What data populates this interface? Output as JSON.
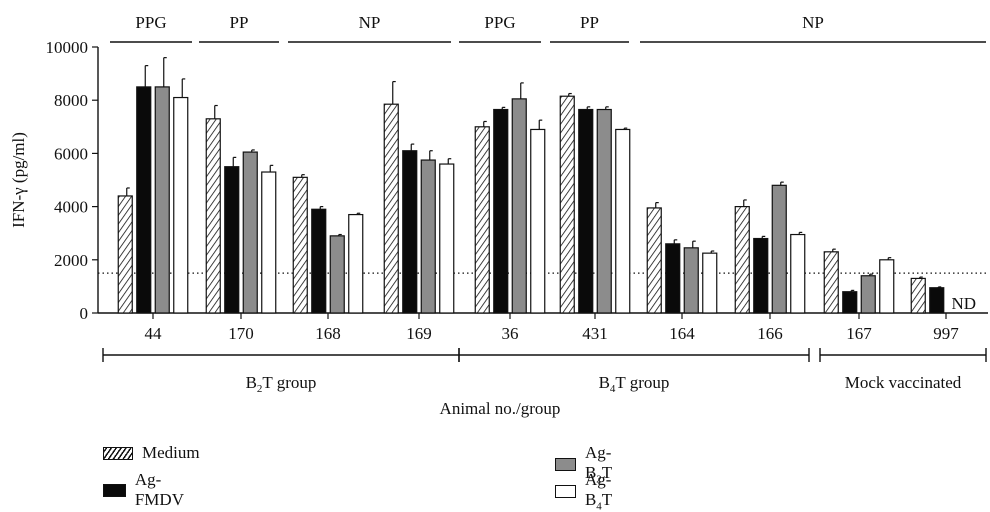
{
  "chart_data": {
    "type": "bar",
    "ylabel": "IFN-γ (pg/ml)",
    "xlabel": "Animal no./group",
    "ylim": [
      0,
      10000
    ],
    "yticks": [
      0,
      2000,
      4000,
      6000,
      8000,
      10000
    ],
    "threshold": 1500,
    "categories": [
      "44",
      "170",
      "168",
      "169",
      "36",
      "431",
      "164",
      "166",
      "167",
      "997"
    ],
    "series": [
      {
        "name": "Medium",
        "key": "medium",
        "values": [
          4400,
          7300,
          5100,
          7850,
          7000,
          8150,
          3950,
          4000,
          2300,
          1300
        ],
        "errors": [
          300,
          500,
          100,
          850,
          200,
          100,
          200,
          250,
          100,
          50
        ]
      },
      {
        "name": "Ag-FMDV",
        "key": "fmdv",
        "values": [
          8500,
          5500,
          3900,
          6100,
          7650,
          7650,
          2600,
          2800,
          800,
          950
        ],
        "errors": [
          800,
          350,
          100,
          250,
          80,
          100,
          150,
          80,
          50,
          30
        ]
      },
      {
        "name": "Ag-B2T",
        "key": "b2t",
        "values": [
          8500,
          6050,
          2900,
          5750,
          8050,
          7650,
          2450,
          4800,
          1400,
          null
        ],
        "errors": [
          1100,
          80,
          50,
          350,
          600,
          100,
          250,
          120,
          60,
          0
        ]
      },
      {
        "name": "Ag-B4T",
        "key": "b4t",
        "values": [
          8100,
          5300,
          3700,
          5600,
          6900,
          6900,
          2250,
          2950,
          2000,
          null
        ],
        "errors": [
          700,
          250,
          50,
          200,
          350,
          50,
          80,
          80,
          80,
          0
        ]
      }
    ],
    "nd_label": "ND",
    "top_labels": [
      {
        "text": "PPG",
        "from": 0,
        "to": 0
      },
      {
        "text": "PP",
        "from": 1,
        "to": 1
      },
      {
        "text": "NP",
        "from": 2,
        "to": 3
      },
      {
        "text": "PPG",
        "from": 4,
        "to": 4
      },
      {
        "text": "PP",
        "from": 5,
        "to": 5
      },
      {
        "text": "NP",
        "from": 6,
        "to": 9
      }
    ],
    "groups": [
      {
        "label": "B",
        "sub": "2",
        "suffix": "T group",
        "from": 0,
        "to": 3
      },
      {
        "label": "B",
        "sub": "4",
        "suffix": "T group",
        "from": 4,
        "to": 7
      },
      {
        "label": "Mock vaccinated",
        "sub": "",
        "suffix": "",
        "from": 8,
        "to": 9
      }
    ]
  },
  "legend": {
    "medium": "Medium",
    "fmdv": "Ag-FMDV",
    "b2t_prefix": "Ag-B",
    "b2t_sub": "2",
    "b2t_suffix": "T",
    "b4t_prefix": "Ag-B",
    "b4t_sub": "4",
    "b4t_suffix": "T"
  }
}
